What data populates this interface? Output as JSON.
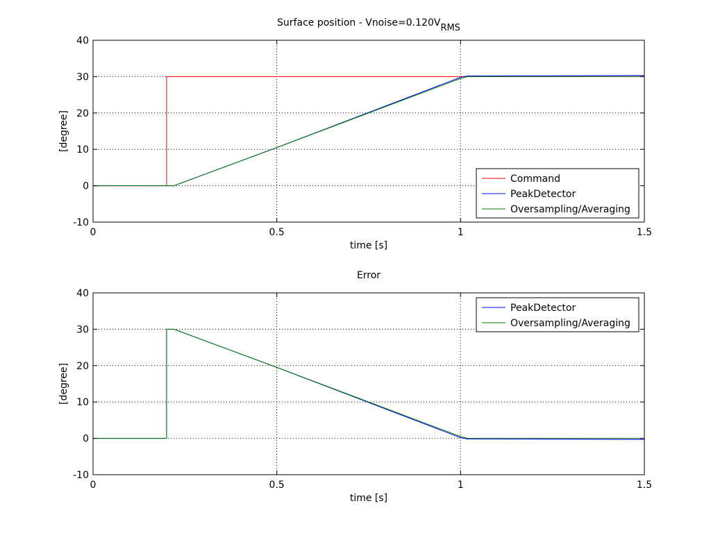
{
  "chart_data": [
    {
      "type": "line",
      "title": "Surface position - Vnoise=0.120V",
      "title_subscript": "RMS",
      "xlabel": "time [s]",
      "ylabel": "[degree]",
      "xlim": [
        0,
        1.5
      ],
      "ylim": [
        -10,
        40
      ],
      "xticks": [
        0,
        0.5,
        1,
        1.5
      ],
      "xtick_labels": [
        "0",
        "0.5",
        "1",
        "1.5"
      ],
      "yticks": [
        -10,
        0,
        10,
        20,
        30,
        40
      ],
      "ytick_labels": [
        "-10",
        "0",
        "10",
        "20",
        "30",
        "40"
      ],
      "grid": true,
      "legend_position": "bottom-right",
      "series": [
        {
          "name": "Command",
          "color": "#ff0000",
          "x": [
            0,
            0.2,
            0.2,
            1.5
          ],
          "y": [
            0,
            0,
            30,
            30
          ]
        },
        {
          "name": "PeakDetector",
          "color": "#0000ff",
          "x": [
            0,
            0.22,
            0.5,
            1.0,
            1.02,
            1.5
          ],
          "y": [
            0,
            0,
            10.5,
            29.8,
            30.2,
            30.3
          ]
        },
        {
          "name": "Oversampling/Averaging",
          "color": "#008000",
          "x": [
            0,
            0.22,
            0.5,
            1.0,
            1.02,
            1.5
          ],
          "y": [
            0,
            0,
            10.5,
            29.5,
            30,
            30
          ]
        }
      ]
    },
    {
      "type": "line",
      "title": "Error",
      "title_subscript": "",
      "xlabel": "time [s]",
      "ylabel": "[degree]",
      "xlim": [
        0,
        1.5
      ],
      "ylim": [
        -10,
        40
      ],
      "xticks": [
        0,
        0.5,
        1,
        1.5
      ],
      "xtick_labels": [
        "0",
        "0.5",
        "1",
        "1.5"
      ],
      "yticks": [
        -10,
        0,
        10,
        20,
        30,
        40
      ],
      "ytick_labels": [
        "-10",
        "0",
        "10",
        "20",
        "30",
        "40"
      ],
      "grid": true,
      "legend_position": "top-right",
      "series": [
        {
          "name": "PeakDetector",
          "color": "#0000ff",
          "x": [
            0,
            0.2,
            0.2,
            0.22,
            0.5,
            1.0,
            1.02,
            1.5
          ],
          "y": [
            0,
            0,
            30,
            30,
            19.5,
            0.2,
            -0.2,
            -0.3
          ]
        },
        {
          "name": "Oversampling/Averaging",
          "color": "#008000",
          "x": [
            0,
            0.2,
            0.2,
            0.22,
            0.5,
            1.0,
            1.02,
            1.5
          ],
          "y": [
            0,
            0,
            30,
            30,
            19.5,
            0.5,
            0,
            0
          ]
        }
      ]
    }
  ]
}
